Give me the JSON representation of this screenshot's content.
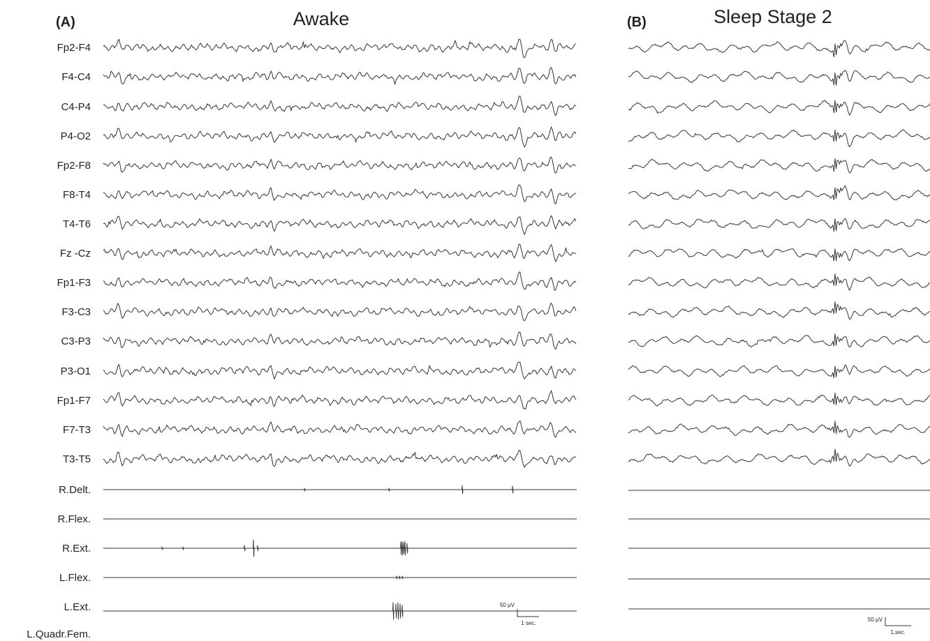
{
  "panels": [
    {
      "id": "A",
      "label": "(A)",
      "title": "Awake",
      "scale": {
        "amplitude": "50 µV",
        "time": "1 sec."
      }
    },
    {
      "id": "B",
      "label": "(B)",
      "title": "Sleep Stage 2",
      "scale": {
        "amplitude": "50 µV",
        "time": "1,sec."
      }
    }
  ],
  "channels": [
    "Fp2-F4",
    "F4-C4",
    "C4-P4",
    "P4-O2",
    "Fp2-F8",
    "F8-T4",
    "T4-T6",
    "Fz -Cz",
    "Fp1-F3",
    "F3-C3",
    "C3-P3",
    "P3-O1",
    "Fp1-F7",
    "F7-T3",
    "T3-T5",
    "R.Delt.",
    "R.Flex.",
    "R.Ext.",
    "L.Flex.",
    "L.Ext.",
    "L.Quadr.Fem."
  ]
}
